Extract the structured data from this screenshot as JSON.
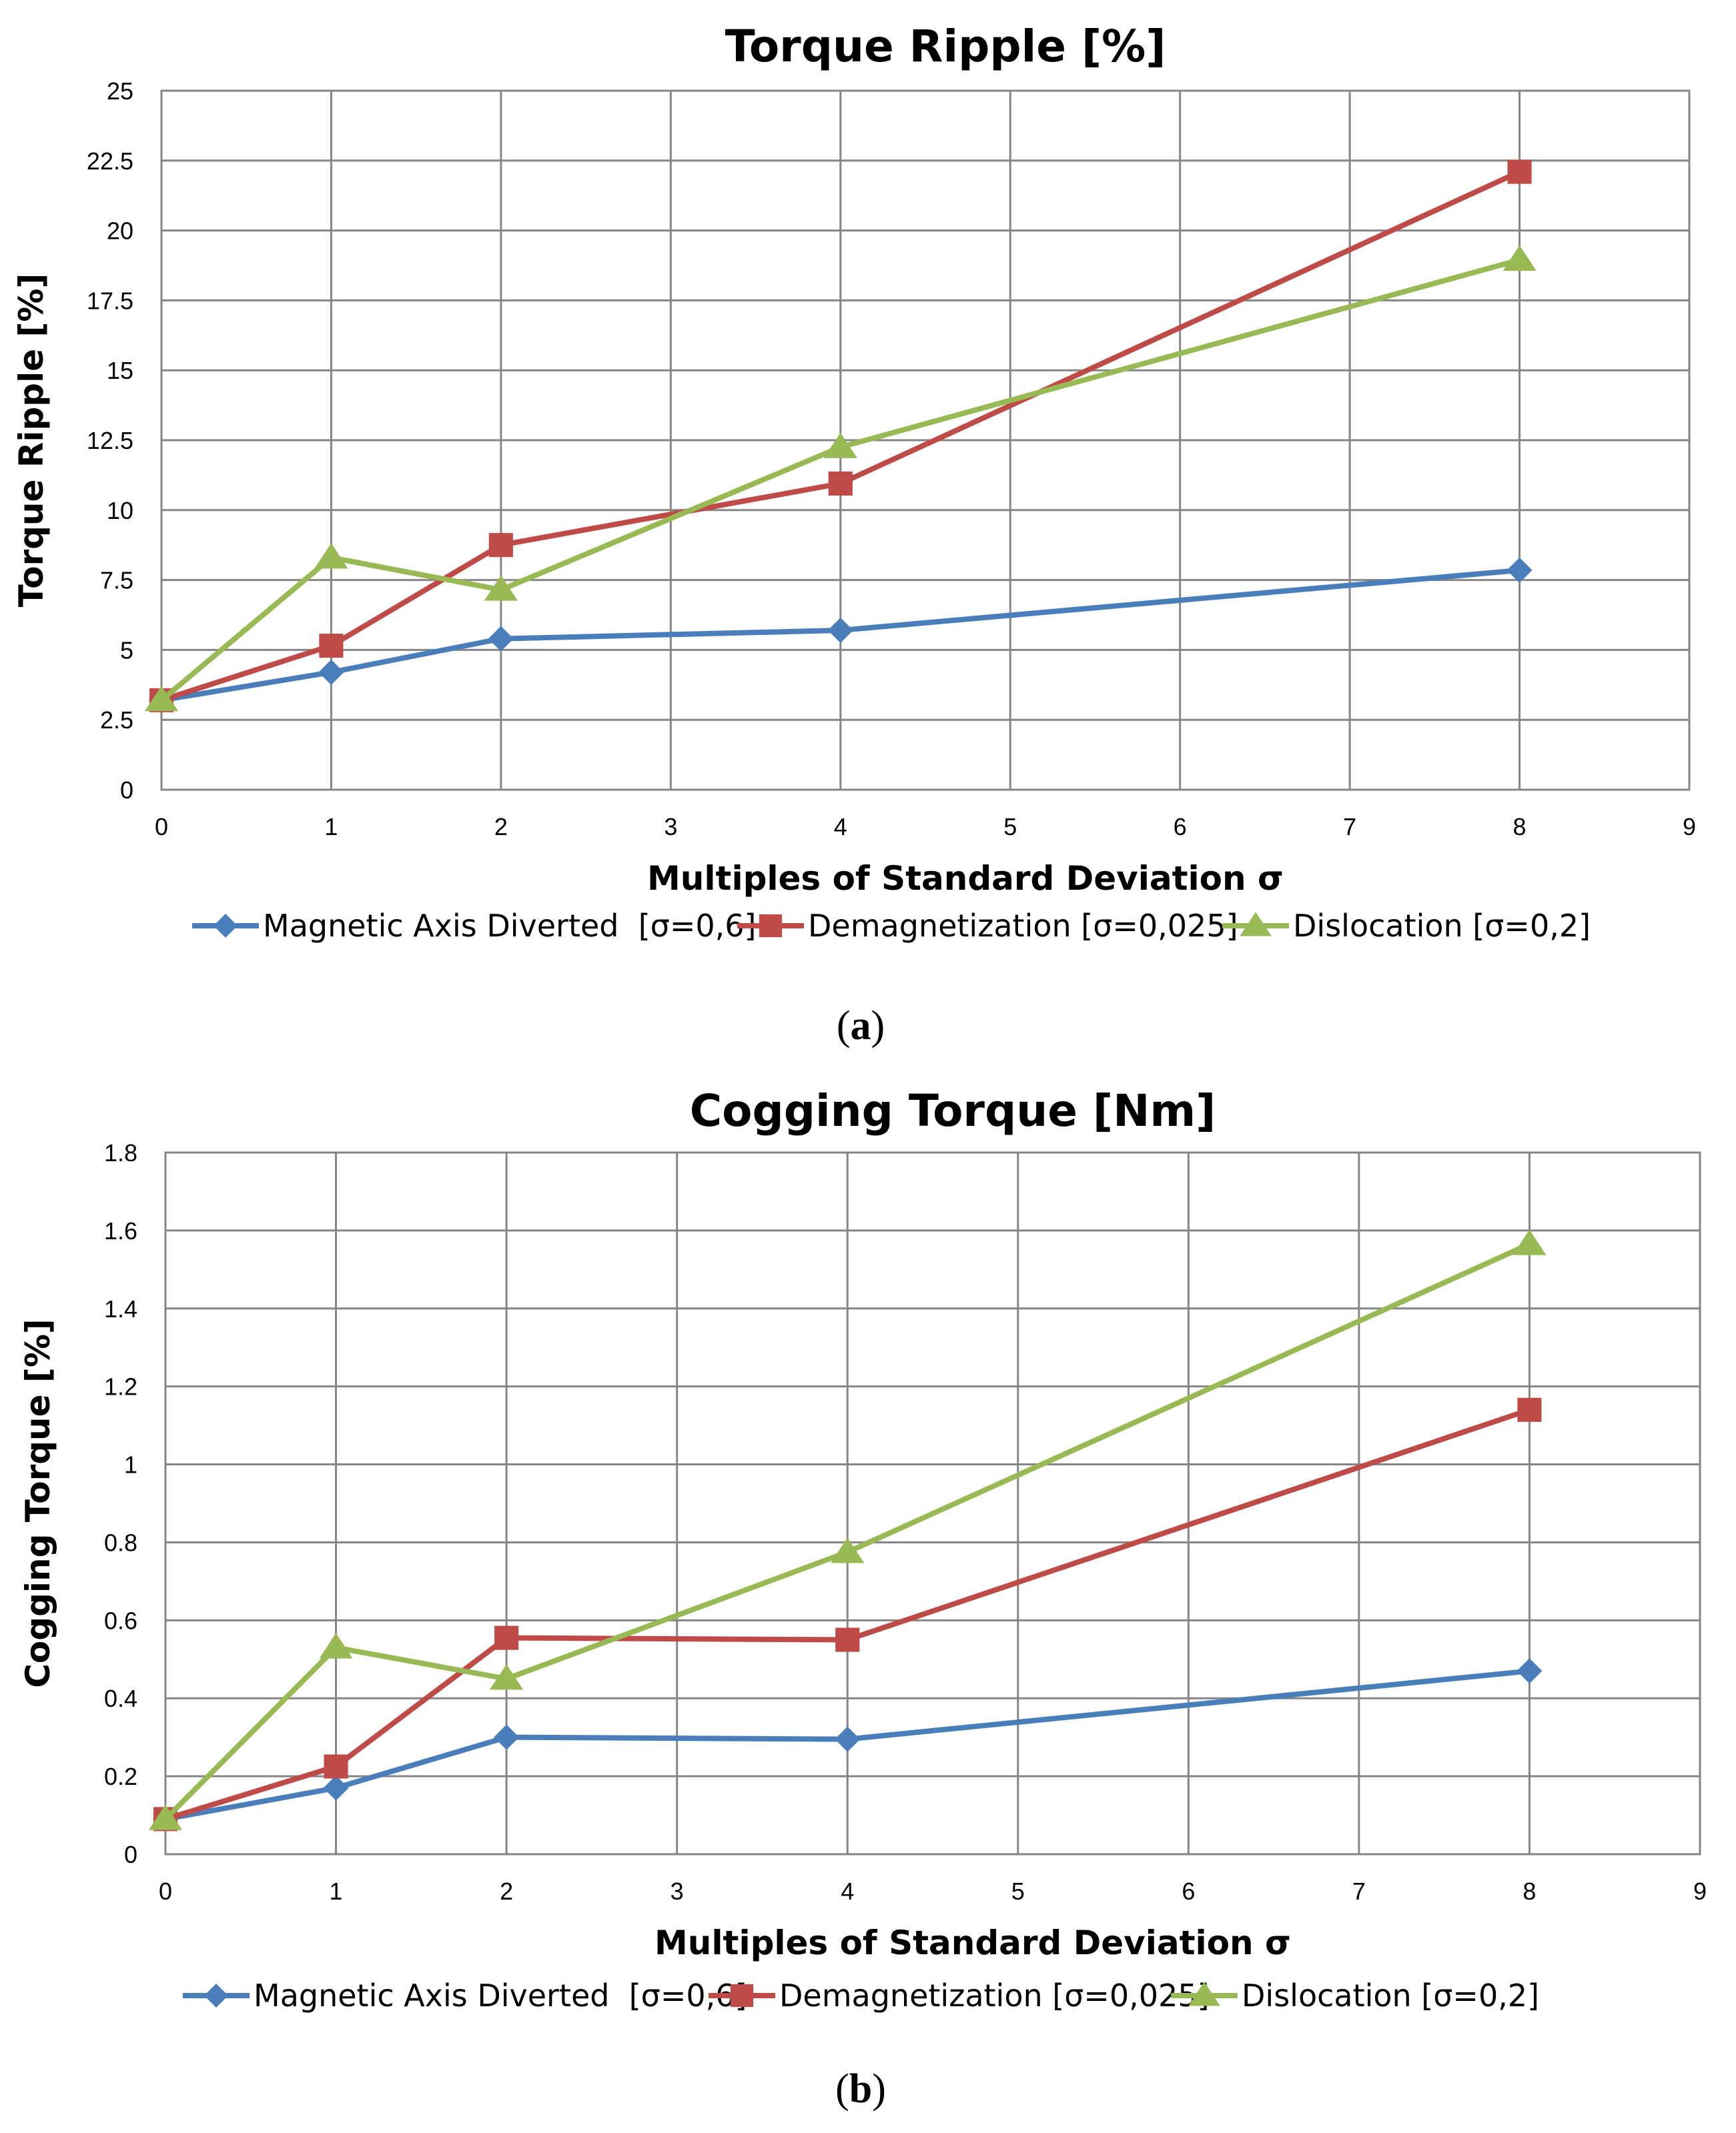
{
  "colors": {
    "magnetic": "#4a7ebb",
    "demag": "#be4b48",
    "dislocation": "#98b954",
    "grid": "#868686"
  },
  "chart_data": [
    {
      "type": "line",
      "title": "Torque Ripple [%]",
      "xlabel": "Multiples of Standard Deviation σ",
      "ylabel": "Torque Ripple [%]",
      "caption_letter": "a",
      "xlim": [
        0,
        9
      ],
      "ylim": [
        0,
        25
      ],
      "xticks": [
        0,
        1,
        2,
        3,
        4,
        5,
        6,
        7,
        8,
        9
      ],
      "yticks": [
        0,
        2.5,
        5,
        7.5,
        10,
        12.5,
        15,
        17.5,
        20,
        22.5,
        25
      ],
      "x": [
        0,
        1,
        2,
        4,
        8
      ],
      "legend_position": "bottom",
      "series": [
        {
          "name": "Magnetic Axis Diverted  [σ=0,6]",
          "marker": "diamond",
          "color_key": "magnetic",
          "values": [
            3.2,
            4.2,
            5.4,
            5.7,
            7.85
          ]
        },
        {
          "name": "Demagnetization [σ=0,025]",
          "marker": "square",
          "color_key": "demag",
          "values": [
            3.2,
            5.15,
            8.75,
            10.95,
            22.1
          ]
        },
        {
          "name": "Dislocation [σ=0,2]",
          "marker": "triangle",
          "color_key": "dislocation",
          "values": [
            3.2,
            8.3,
            7.15,
            12.25,
            18.95
          ]
        }
      ]
    },
    {
      "type": "line",
      "title": "Cogging Torque [Nm]",
      "xlabel": "Multiples of Standard Deviation σ",
      "ylabel": "Cogging Torque [%]",
      "caption_letter": "b",
      "xlim": [
        0,
        9
      ],
      "ylim": [
        0,
        1.8
      ],
      "xticks": [
        0,
        1,
        2,
        3,
        4,
        5,
        6,
        7,
        8,
        9
      ],
      "yticks": [
        0,
        0.2,
        0.4,
        0.6,
        0.8,
        1,
        1.2,
        1.4,
        1.6,
        1.8
      ],
      "x": [
        0,
        1,
        2,
        4,
        8
      ],
      "legend_position": "bottom",
      "series": [
        {
          "name": "Magnetic Axis Diverted  [σ=0,6]",
          "marker": "diamond",
          "color_key": "magnetic",
          "values": [
            0.09,
            0.17,
            0.3,
            0.295,
            0.47
          ]
        },
        {
          "name": "Demagnetization [σ=0,025]",
          "marker": "square",
          "color_key": "demag",
          "values": [
            0.09,
            0.225,
            0.555,
            0.55,
            1.14
          ]
        },
        {
          "name": "Dislocation [σ=0,2]",
          "marker": "triangle",
          "color_key": "dislocation",
          "values": [
            0.09,
            0.53,
            0.45,
            0.775,
            1.565
          ]
        }
      ]
    }
  ]
}
